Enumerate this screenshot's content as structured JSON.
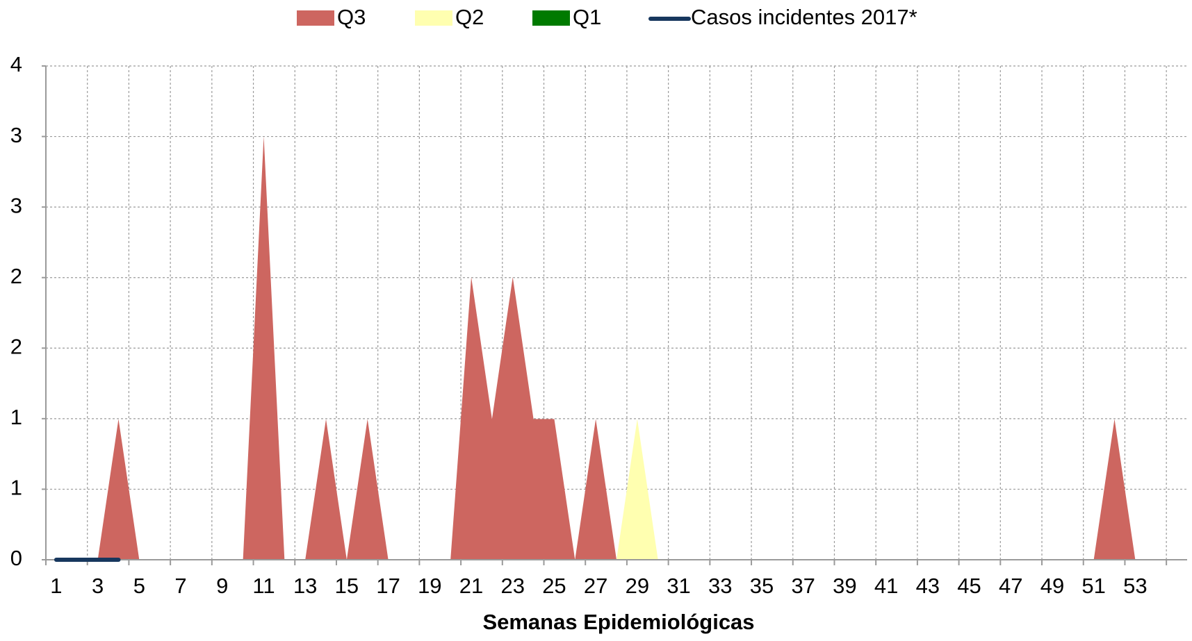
{
  "chart_data": {
    "type": "area",
    "x_label": "Semanas Epidemiológicas",
    "categories": [
      "1",
      null,
      "3",
      null,
      "5",
      null,
      "7",
      null,
      "9",
      null,
      "11",
      null,
      "13",
      null,
      "15",
      null,
      "17",
      null,
      "19",
      null,
      "21",
      null,
      "23",
      null,
      "25",
      null,
      "27",
      null,
      "29",
      null,
      "31",
      null,
      "33",
      null,
      "35",
      null,
      "37",
      null,
      "39",
      null,
      "41",
      null,
      "43",
      null,
      "45",
      null,
      "47",
      null,
      "49",
      null,
      "51",
      null,
      "53",
      null,
      null
    ],
    "series": [
      {
        "name": "Q3",
        "color": "#cd6660",
        "values": [
          0,
          0,
          0,
          1.14,
          0,
          0,
          0,
          0,
          0,
          0,
          3.43,
          0,
          0,
          1.14,
          0,
          1.14,
          0,
          0,
          0,
          0,
          2.29,
          1.14,
          2.29,
          1.14,
          1.14,
          0,
          1.14,
          0,
          0,
          0,
          0,
          0,
          0,
          0,
          0,
          0,
          0,
          0,
          0,
          0,
          0,
          0,
          0,
          0,
          0,
          0,
          0,
          0,
          0,
          0,
          0,
          1.14,
          0,
          0,
          0
        ]
      },
      {
        "name": "Q2",
        "color": "#ffffb0",
        "values": [
          0,
          0,
          0,
          0,
          0,
          0,
          0,
          0,
          0,
          0,
          0,
          0,
          0,
          0,
          0,
          0,
          0,
          0,
          0,
          0,
          0,
          0,
          0,
          0,
          0,
          0,
          0,
          0,
          1.14,
          0,
          0,
          0,
          0,
          0,
          0,
          0,
          0,
          0,
          0,
          0,
          0,
          0,
          0,
          0,
          0,
          0,
          0,
          0,
          0,
          0,
          0,
          0,
          0,
          0,
          0
        ]
      },
      {
        "name": "Q1",
        "color": "#007a00",
        "values": [
          0,
          0,
          0,
          0,
          0,
          0,
          0,
          0,
          0,
          0,
          0,
          0,
          0,
          0,
          0,
          0,
          0,
          0,
          0,
          0,
          0,
          0,
          0,
          0,
          0,
          0,
          0,
          0,
          0,
          0,
          0,
          0,
          0,
          0,
          0,
          0,
          0,
          0,
          0,
          0,
          0,
          0,
          0,
          0,
          0,
          0,
          0,
          0,
          0,
          0,
          0,
          0,
          0,
          0,
          0
        ]
      },
      {
        "name": "Casos incidentes 2017*",
        "type": "line",
        "color": "#17375e",
        "values": [
          0,
          0,
          0,
          0,
          null,
          null,
          null,
          null,
          null,
          null,
          null,
          null,
          null,
          null,
          null,
          null,
          null,
          null,
          null,
          null,
          null,
          null,
          null,
          null,
          null,
          null,
          null,
          null,
          null,
          null,
          null,
          null,
          null,
          null,
          null,
          null,
          null,
          null,
          null,
          null,
          null,
          null,
          null,
          null,
          null,
          null,
          null,
          null,
          null,
          null,
          null,
          null,
          null,
          null,
          null
        ]
      }
    ],
    "ylim": [
      0,
      4
    ],
    "yticks": [
      0,
      {
        "value": 0.5714,
        "label": "1"
      },
      {
        "value": 1.1429,
        "label": "1"
      },
      {
        "value": 1.7143,
        "label": "2"
      },
      {
        "value": 2.2857,
        "label": "2"
      },
      {
        "value": 2.8571,
        "label": "3"
      },
      {
        "value": 3.4286,
        "label": "3"
      },
      4
    ],
    "grid": true,
    "legend": "top"
  }
}
